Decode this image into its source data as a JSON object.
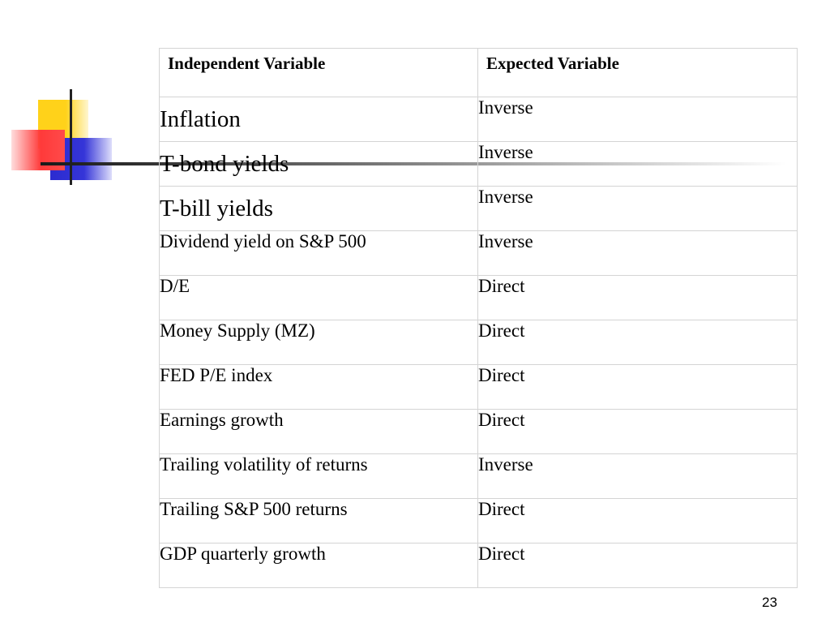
{
  "table": {
    "headers": [
      "Independent Variable",
      "Expected Variable"
    ],
    "rows": [
      {
        "variable": "Inflation",
        "relationship": "Inverse"
      },
      {
        "variable": "T-bond yields",
        "relationship": "Inverse"
      },
      {
        "variable": "T-bill yields",
        "relationship": "Inverse"
      },
      {
        "variable": "Dividend yield on S&P 500",
        "relationship": "Inverse"
      },
      {
        "variable": "D/E",
        "relationship": "Direct"
      },
      {
        "variable": "Money Supply (MZ)",
        "relationship": "Direct"
      },
      {
        "variable": "FED P/E index",
        "relationship": "Direct"
      },
      {
        "variable": "Earnings growth",
        "relationship": "Direct"
      },
      {
        "variable": "Trailing volatility of returns",
        "relationship": "Inverse"
      },
      {
        "variable": "Trailing S&P 500 returns",
        "relationship": "Direct"
      },
      {
        "variable": "GDP quarterly growth",
        "relationship": "Direct"
      }
    ]
  },
  "footer": {
    "page_number": "23"
  }
}
